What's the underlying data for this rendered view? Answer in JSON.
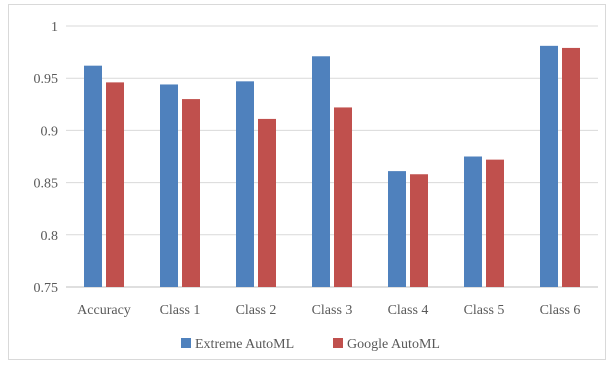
{
  "chart_data": {
    "type": "bar",
    "categories": [
      "Accuracy",
      "Class 1",
      "Class 2",
      "Class 3",
      "Class 4",
      "Class 5",
      "Class 6"
    ],
    "series": [
      {
        "name": "Extreme AutoML",
        "color": "#4f81bd",
        "values": [
          0.962,
          0.944,
          0.947,
          0.971,
          0.861,
          0.875,
          0.981
        ]
      },
      {
        "name": "Google AutoML",
        "color": "#c0504d",
        "values": [
          0.946,
          0.93,
          0.911,
          0.922,
          0.858,
          0.872,
          0.979
        ]
      }
    ],
    "ylim": [
      0.75,
      1.0
    ],
    "yticks": [
      "0.75",
      "0.8",
      "0.85",
      "0.9",
      "0.95",
      "1"
    ],
    "grid": true,
    "legend_position": "bottom"
  }
}
